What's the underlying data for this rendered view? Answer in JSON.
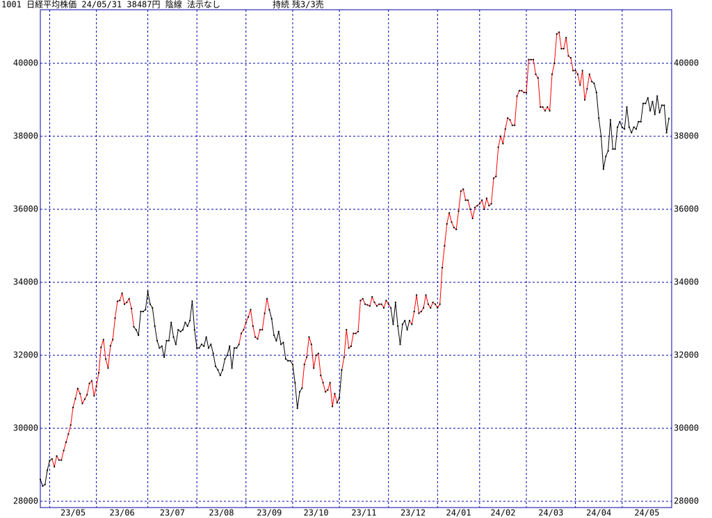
{
  "chart_data": {
    "type": "line",
    "title": "1001 日経平均株価 24/05/31 38487円 陰線 法示なし",
    "status": [
      "持続",
      "残3/3売"
    ],
    "ylim": [
      27829,
      41467
    ],
    "yticks": [
      28000,
      30000,
      32000,
      34000,
      36000,
      38000,
      40000
    ],
    "xticks": [
      {
        "value": 4,
        "label": "23/05"
      },
      {
        "value": 24,
        "label": "23/06"
      },
      {
        "value": 46,
        "label": "23/07"
      },
      {
        "value": 67,
        "label": "23/08"
      },
      {
        "value": 88,
        "label": "23/09"
      },
      {
        "value": 108,
        "label": "23/10"
      },
      {
        "value": 128,
        "label": "23/11"
      },
      {
        "value": 149,
        "label": "23/12"
      },
      {
        "value": 170,
        "label": "24/01"
      },
      {
        "value": 188,
        "label": "24/02"
      },
      {
        "value": 208,
        "label": "24/03"
      },
      {
        "value": 229,
        "label": "24/04"
      },
      {
        "value": 249,
        "label": "24/05"
      }
    ],
    "grid": true,
    "frame_color": "#0000aa",
    "dot_color": "#000000",
    "color_runs": [
      [
        0,
        "#000000"
      ],
      [
        5,
        "#ff0000"
      ],
      [
        40,
        "#000000"
      ],
      [
        85,
        "#ff0000"
      ],
      [
        98,
        "#000000"
      ],
      [
        112,
        "#ff0000"
      ],
      [
        127,
        "#000000"
      ],
      [
        129,
        "#ff0000"
      ],
      [
        150,
        "#000000"
      ],
      [
        158,
        "#ff0000"
      ],
      [
        236,
        "#000000"
      ]
    ],
    "values": [
      28600,
      28420,
      28460,
      28850,
      29120,
      29160,
      28950,
      29240,
      29130,
      29130,
      29390,
      29620,
      29840,
      30090,
      30570,
      30810,
      31090,
      30950,
      30680,
      30800,
      30920,
      31230,
      31300,
      30890,
      31150,
      31520,
      32220,
      32430,
      31900,
      31650,
      32260,
      32430,
      33020,
      33480,
      33500,
      33700,
      33400,
      33450,
      33550,
      33280,
      32780,
      32700,
      32550,
      33200,
      33200,
      33250,
      33750,
      33400,
      33300,
      32800,
      32400,
      32200,
      32250,
      31950,
      32400,
      32400,
      32900,
      32500,
      32300,
      32700,
      32650,
      32700,
      32900,
      32800,
      32950,
      33480,
      32700,
      32200,
      32200,
      32300,
      32250,
      32500,
      32200,
      32300,
      32050,
      31700,
      31600,
      31450,
      31600,
      31900,
      32000,
      32250,
      31650,
      32200,
      32200,
      32300,
      32600,
      32700,
      32900,
      33050,
      33250,
      32800,
      32500,
      32450,
      32700,
      32700,
      33150,
      33550,
      33250,
      33000,
      32550,
      32400,
      32650,
      32300,
      32350,
      31900,
      31850,
      31850,
      31750,
      31250,
      30550,
      31000,
      31100,
      31750,
      31950,
      32500,
      32300,
      31650,
      32000,
      32050,
      31450,
      31250,
      31000,
      31050,
      31250,
      30600,
      30950,
      30700,
      30850,
      31600,
      31950,
      32700,
      32200,
      32250,
      32600,
      32600,
      32650,
      33500,
      33550,
      33400,
      33380,
      33350,
      33600,
      33450,
      33350,
      33400,
      33400,
      33300,
      33500,
      33400,
      33300,
      32850,
      33450,
      32800,
      32300,
      32850,
      32950,
      32700,
      32950,
      32850,
      33200,
      33650,
      33150,
      33200,
      33300,
      33650,
      33400,
      33300,
      33450,
      33400,
      33300,
      33400,
      34400,
      35000,
      35600,
      35900,
      35650,
      35500,
      35450,
      35950,
      36500,
      36550,
      36250,
      36250,
      36000,
      35750,
      36050,
      36100,
      36150,
      36250,
      36000,
      36300,
      36100,
      36150,
      36850,
      36900,
      37700,
      38000,
      37800,
      38200,
      38500,
      38450,
      38300,
      38300,
      39100,
      39250,
      39250,
      39200,
      39200,
      40100,
      40100,
      40100,
      39700,
      39600,
      38800,
      38800,
      38700,
      38800,
      38700,
      39700,
      40000,
      40800,
      40850,
      40400,
      40400,
      40700,
      40200,
      40150,
      39800,
      39800,
      39700,
      39400,
      39800,
      39000,
      39300,
      39700,
      39500,
      39450,
      39200,
      38500,
      38000,
      37100,
      37450,
      37600,
      38450,
      37650,
      37650,
      38250,
      38400,
      38250,
      38200,
      38800,
      38250,
      38100,
      38250,
      38200,
      38400,
      38400,
      38900,
      38900,
      39050,
      38700,
      38950,
      38600,
      39100,
      38650,
      38850,
      38850,
      38100,
      38487
    ]
  }
}
